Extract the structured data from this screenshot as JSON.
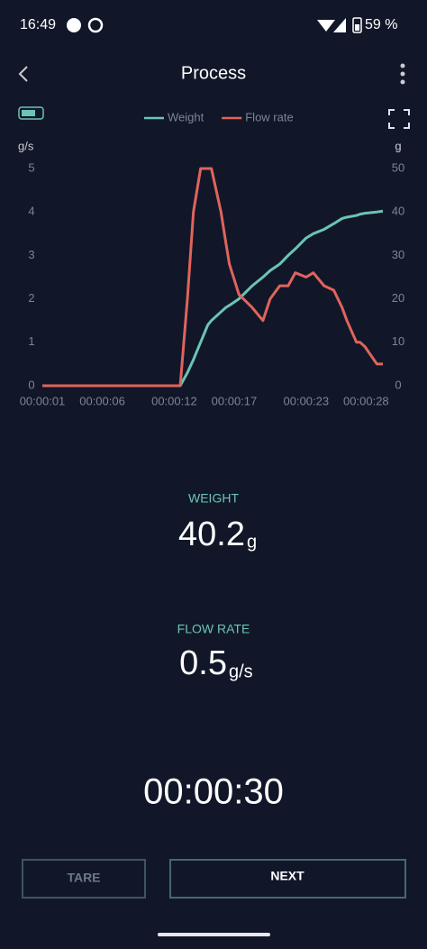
{
  "status_bar": {
    "time": "16:49",
    "battery": "59 %"
  },
  "header": {
    "title": "Process"
  },
  "chart_data": {
    "type": "line",
    "x": [
      1,
      12.5,
      13.1,
      13.6,
      14.2,
      14.8,
      15.1,
      15.9,
      16.3,
      16.6,
      17.4,
      18.5,
      19.4,
      20.0,
      20.8,
      21.5,
      22.1,
      23.0,
      23.6,
      24.5,
      25.3,
      26.0,
      26.4,
      27.2,
      27.5,
      27.9,
      28.9,
      29.4
    ],
    "series": [
      {
        "name": "Weight",
        "color": "#6cc4b4",
        "axis": "y2",
        "values": [
          0,
          0,
          3,
          6,
          10,
          14,
          15,
          17,
          18,
          18.5,
          20,
          23,
          25,
          26.5,
          28,
          30,
          31.5,
          34,
          35,
          36,
          37.3,
          38.5,
          38.8,
          39.2,
          39.5,
          39.7,
          40,
          40.2
        ]
      },
      {
        "name": "Flow rate",
        "color": "#e0645c",
        "values": [
          0,
          0,
          2.0,
          4.0,
          5,
          5,
          5,
          4,
          3.3,
          2.8,
          2.1,
          1.8,
          1.5,
          2.0,
          2.3,
          2.3,
          2.6,
          2.5,
          2.6,
          2.3,
          2.2,
          1.8,
          1.5,
          1.0,
          1.0,
          0.9,
          0.5,
          0.5
        ]
      }
    ],
    "xlim": [
      1,
      29.4
    ],
    "xticks": [
      {
        "value": 1,
        "label": "00:00:01"
      },
      {
        "value": 6,
        "label": "00:00:06"
      },
      {
        "value": 12,
        "label": "00:00:12"
      },
      {
        "value": 17,
        "label": "00:00:17"
      },
      {
        "value": 23,
        "label": "00:00:23"
      },
      {
        "value": 28,
        "label": "00:00:28"
      }
    ],
    "ylim": [
      0,
      5
    ],
    "yticks": [
      0,
      1,
      2,
      3,
      4,
      5
    ],
    "y_label": "g/s",
    "y2lim": [
      0,
      50
    ],
    "y2ticks": [
      0,
      10,
      20,
      30,
      40,
      50
    ],
    "y2_label": "g",
    "legend": "top"
  },
  "readouts": {
    "weight": {
      "label": "WEIGHT",
      "value": 40.2,
      "unit": "g"
    },
    "flow_rate": {
      "label": "FLOW RATE",
      "value": 0.5,
      "unit": "g/s"
    }
  },
  "timer": "00:00:30",
  "buttons": {
    "tare": "TARE",
    "next": "NEXT"
  }
}
